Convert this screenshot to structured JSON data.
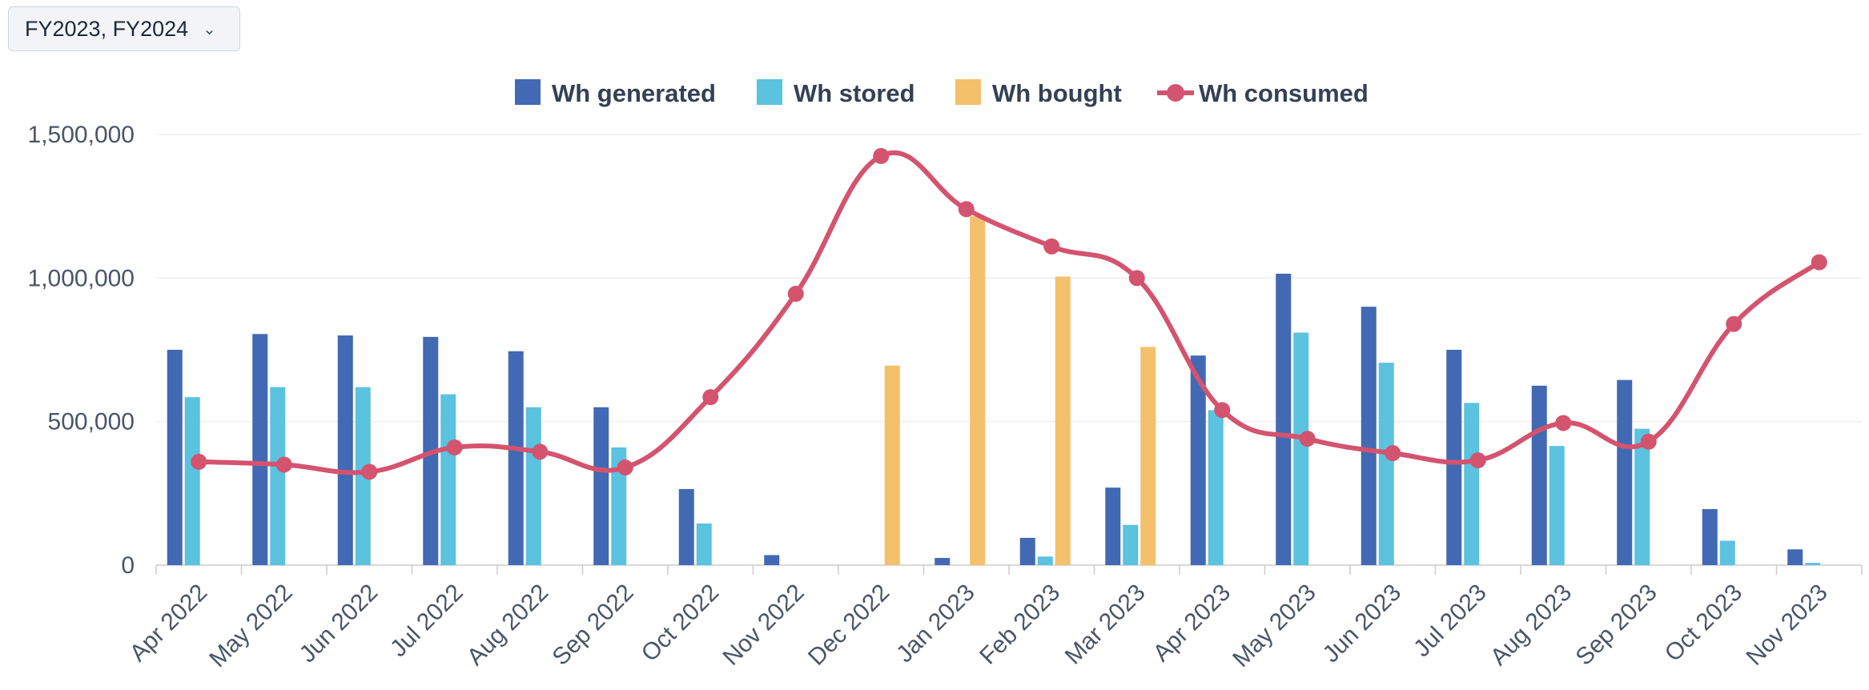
{
  "selector": {
    "label": "FY2023, FY2024",
    "icon": "chevron-down-icon"
  },
  "colors": {
    "generated": "#4169b4",
    "stored": "#5bc2e0",
    "bought": "#f4c06c",
    "consumed": "#d4536e",
    "grid": "#eeeeee",
    "axis": "#cccccc"
  },
  "chart_data": {
    "type": "bar",
    "title": "",
    "xlabel": "",
    "ylabel": "",
    "ylim": [
      0,
      1500000
    ],
    "yticks": [
      0,
      500000,
      1000000,
      1500000
    ],
    "ytick_labels": [
      "0",
      "500,000",
      "1,000,000",
      "1,500,000"
    ],
    "grid": true,
    "legend_position": "top-center",
    "categories": [
      "Apr 2022",
      "May 2022",
      "Jun 2022",
      "Jul 2022",
      "Aug 2022",
      "Sep 2022",
      "Oct 2022",
      "Nov 2022",
      "Dec 2022",
      "Jan 2023",
      "Feb 2023",
      "Mar 2023",
      "Apr 2023",
      "May 2023",
      "Jun 2023",
      "Jul 2023",
      "Aug 2023",
      "Sep 2023",
      "Oct 2023",
      "Nov 2023"
    ],
    "series": [
      {
        "name": "Wh generated",
        "type": "bar",
        "color": "#4169b4",
        "values": [
          750000,
          805000,
          800000,
          795000,
          745000,
          550000,
          265000,
          35000,
          0,
          25000,
          95000,
          270000,
          730000,
          1015000,
          900000,
          750000,
          625000,
          645000,
          195000,
          55000
        ]
      },
      {
        "name": "Wh stored",
        "type": "bar",
        "color": "#5bc2e0",
        "values": [
          585000,
          620000,
          620000,
          595000,
          550000,
          410000,
          145000,
          0,
          0,
          0,
          30000,
          140000,
          540000,
          810000,
          705000,
          565000,
          415000,
          475000,
          85000,
          8000
        ]
      },
      {
        "name": "Wh bought",
        "type": "bar",
        "color": "#f4c06c",
        "values": [
          0,
          0,
          0,
          0,
          0,
          0,
          0,
          0,
          695000,
          1215000,
          1005000,
          760000,
          0,
          0,
          0,
          0,
          0,
          0,
          0,
          0
        ]
      },
      {
        "name": "Wh consumed",
        "type": "line",
        "color": "#d4536e",
        "values": [
          360000,
          350000,
          325000,
          410000,
          395000,
          340000,
          585000,
          945000,
          1425000,
          1240000,
          1110000,
          1000000,
          540000,
          440000,
          390000,
          365000,
          495000,
          430000,
          840000,
          1055000
        ]
      }
    ]
  }
}
